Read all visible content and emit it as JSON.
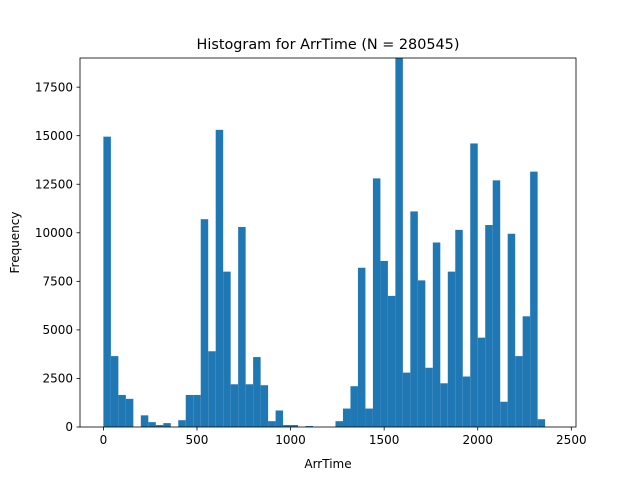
{
  "chart_data": {
    "type": "bar",
    "title": "Histogram for ArrTime (N = 280545)",
    "xlabel": "ArrTime",
    "ylabel": "Frequency",
    "xlim": [
      -125,
      2525
    ],
    "ylim": [
      0,
      19000
    ],
    "xticks": [
      0,
      500,
      1000,
      1500,
      2000,
      2500
    ],
    "xtick_labels": [
      "0",
      "500",
      "1000",
      "1500",
      "2000",
      "2500"
    ],
    "yticks": [
      0,
      2500,
      5000,
      7500,
      10000,
      12500,
      15000,
      17500
    ],
    "ytick_labels": [
      "0",
      "2500",
      "5000",
      "7500",
      "10000",
      "12500",
      "15000",
      "17500"
    ],
    "bin_start": 0,
    "bin_width": 40,
    "bar_color": "#1f77b4",
    "grid": false,
    "legend": "none",
    "values": [
      14950,
      3650,
      1650,
      1450,
      0,
      600,
      250,
      100,
      200,
      0,
      350,
      1650,
      1650,
      10700,
      3900,
      15300,
      8000,
      2200,
      10300,
      2200,
      3600,
      2150,
      300,
      850,
      100,
      100,
      0,
      50,
      0,
      0,
      0,
      300,
      950,
      2100,
      8200,
      950,
      12800,
      8550,
      6750,
      19000,
      2800,
      11100,
      7550,
      3050,
      9500,
      2250,
      8000,
      10150,
      2600,
      14600,
      4600,
      10400,
      12700,
      1300,
      9950,
      3650,
      5700,
      13150,
      400,
      0
    ]
  }
}
